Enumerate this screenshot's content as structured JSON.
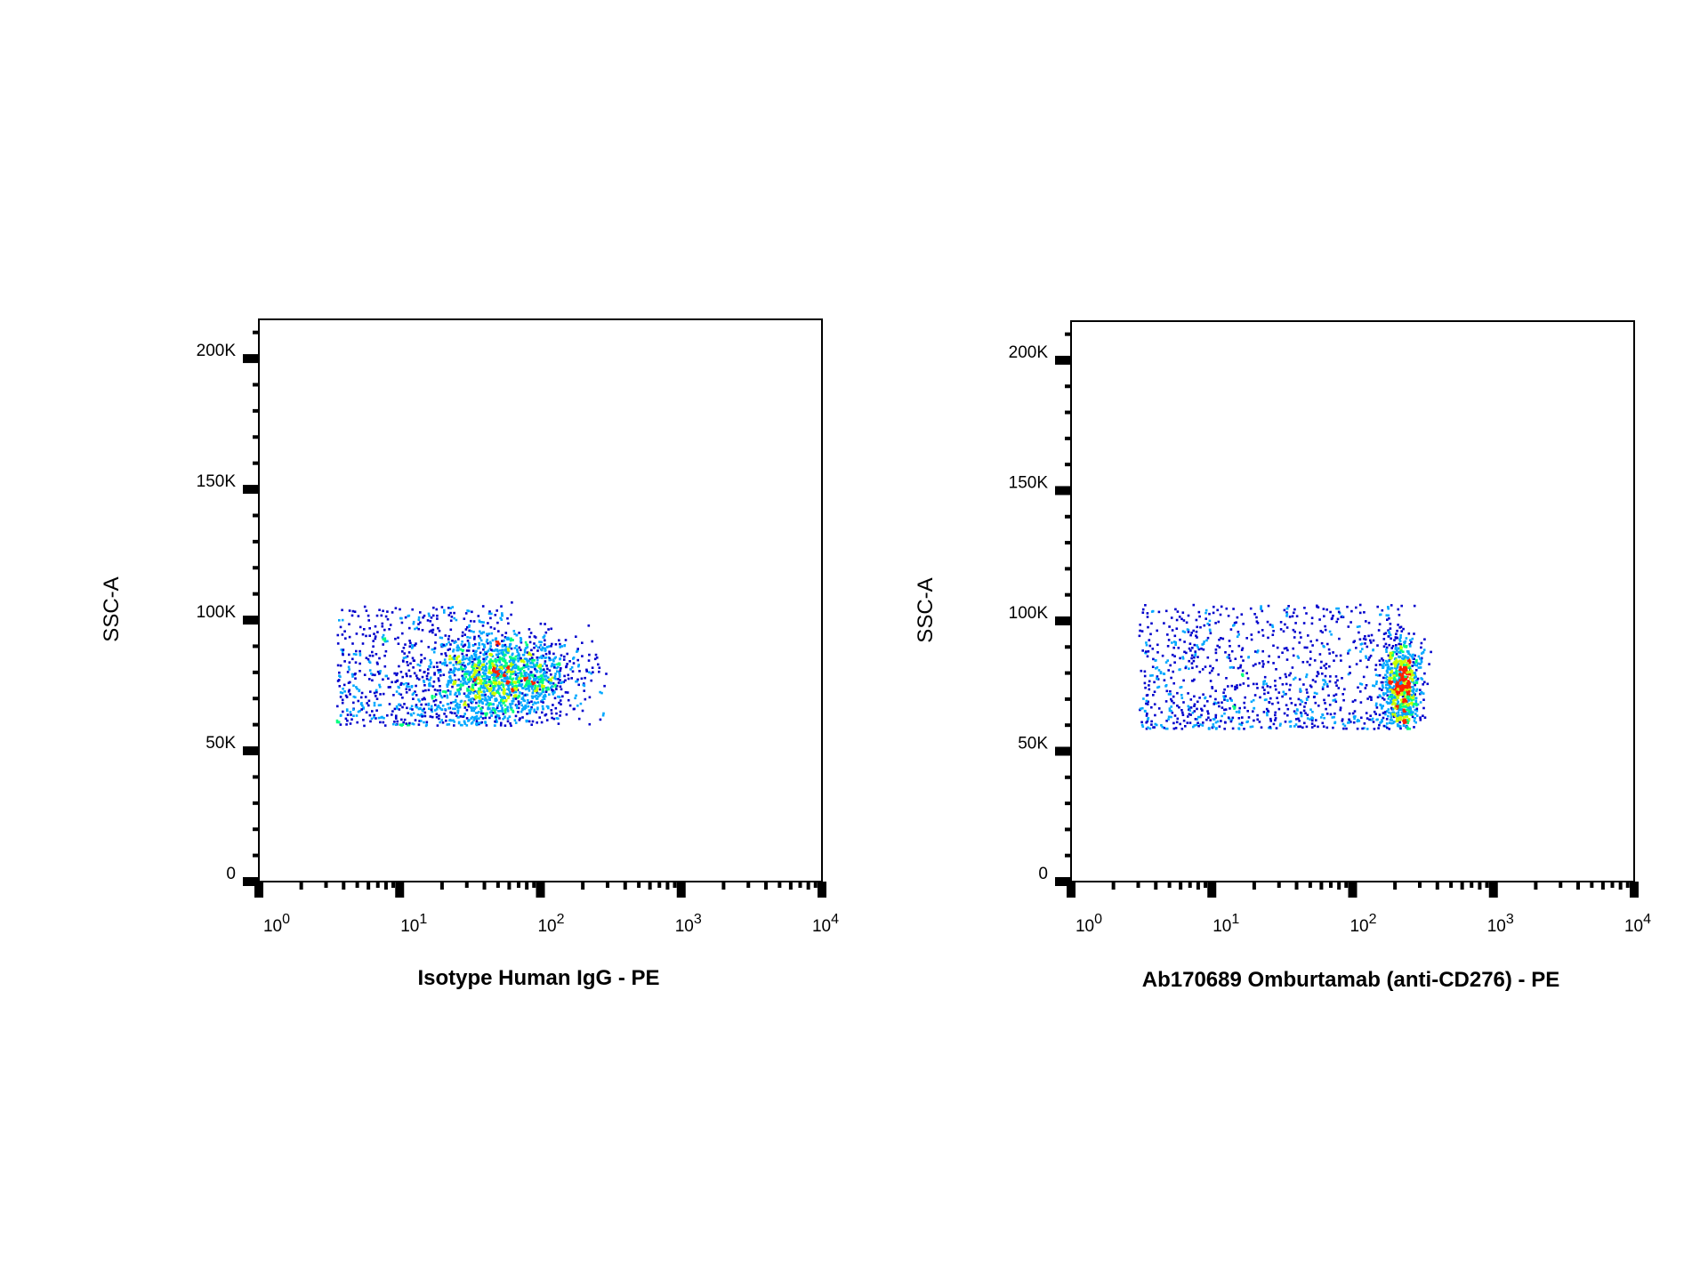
{
  "chart_data": [
    {
      "type": "scatter",
      "subtype": "flow-cytometry-density-plot",
      "title": "",
      "xlabel": "Isotype Human IgG - PE",
      "ylabel": "SSC-A",
      "x_scale": "log",
      "xlim": [
        1,
        10000
      ],
      "ylim": [
        0,
        215000
      ],
      "x_ticks": [
        {
          "base": "10",
          "exp": "0",
          "value": 1
        },
        {
          "base": "10",
          "exp": "1",
          "value": 10
        },
        {
          "base": "10",
          "exp": "2",
          "value": 100
        },
        {
          "base": "10",
          "exp": "3",
          "value": 1000
        },
        {
          "base": "10",
          "exp": "4",
          "value": 10000
        }
      ],
      "y_ticks": [
        {
          "label": "0",
          "value": 0
        },
        {
          "label": "50K",
          "value": 50000
        },
        {
          "label": "100K",
          "value": 100000
        },
        {
          "label": "150K",
          "value": 150000
        },
        {
          "label": "200K",
          "value": 200000
        }
      ],
      "grid": false,
      "population": {
        "x_median": 60,
        "x_range": [
          3.5,
          320
        ],
        "y_median": 78000,
        "y_range": [
          60000,
          114000
        ],
        "density_colors": [
          "#0000cc",
          "#00a8ff",
          "#00ff80",
          "#c8ff00",
          "#ff2000"
        ]
      }
    },
    {
      "type": "scatter",
      "subtype": "flow-cytometry-density-plot",
      "title": "",
      "xlabel": "Ab170689 Omburtamab (anti-CD276) - PE",
      "ylabel": "SSC-A",
      "x_scale": "log",
      "xlim": [
        1,
        10000
      ],
      "ylim": [
        0,
        215000
      ],
      "x_ticks": [
        {
          "base": "10",
          "exp": "0",
          "value": 1
        },
        {
          "base": "10",
          "exp": "1",
          "value": 10
        },
        {
          "base": "10",
          "exp": "2",
          "value": 100
        },
        {
          "base": "10",
          "exp": "3",
          "value": 1000
        },
        {
          "base": "10",
          "exp": "4",
          "value": 10000
        }
      ],
      "y_ticks": [
        {
          "label": "0",
          "value": 0
        },
        {
          "label": "50K",
          "value": 50000
        },
        {
          "label": "100K",
          "value": 100000
        },
        {
          "label": "150K",
          "value": 150000
        },
        {
          "label": "200K",
          "value": 200000
        }
      ],
      "grid": false,
      "population": {
        "x_median": 220,
        "x_range": [
          3.0,
          420
        ],
        "y_median": 76000,
        "y_range": [
          59000,
          115000
        ],
        "density_colors": [
          "#0000cc",
          "#00a8ff",
          "#00ff80",
          "#c8ff00",
          "#ff2000"
        ]
      }
    }
  ]
}
